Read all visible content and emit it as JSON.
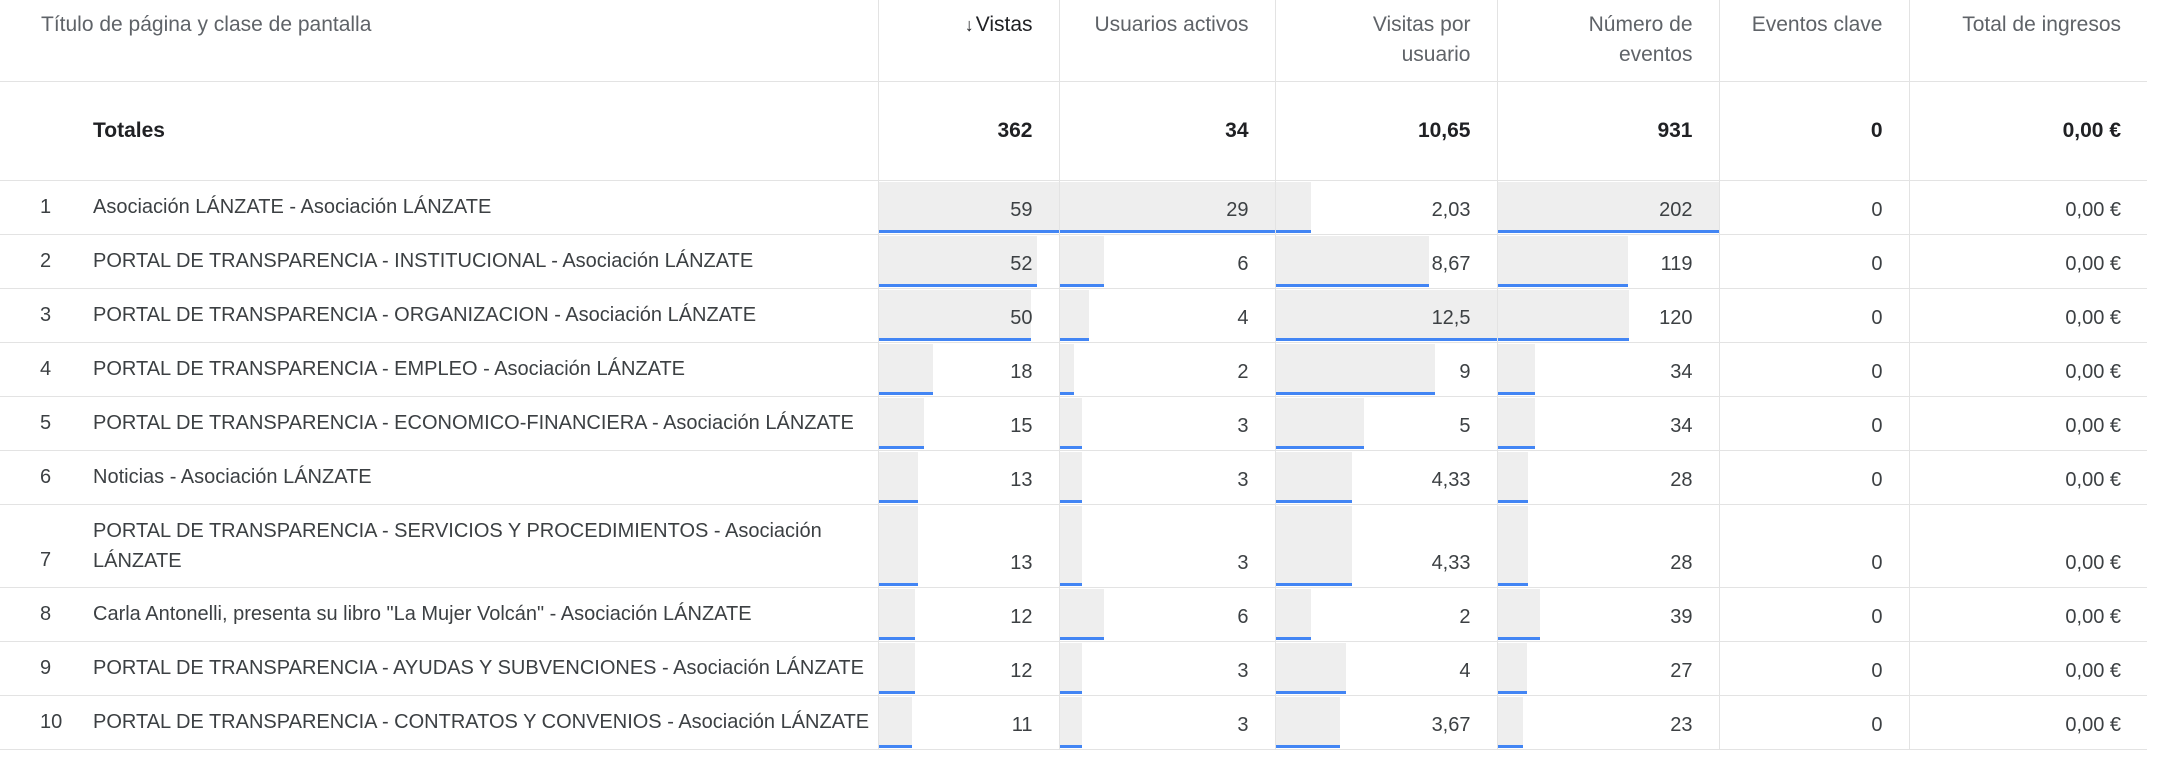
{
  "columns": {
    "title": "Título de página y clase de pantalla",
    "views": "Vistas",
    "active_users": "Usuarios activos",
    "views_per_user_l1": "Visitas por",
    "views_per_user_l2": "usuario",
    "event_count_l1": "Número de",
    "event_count_l2": "eventos",
    "key_events": "Eventos clave",
    "total_revenue": "Total de ingresos",
    "sort_arrow": "↓"
  },
  "totals": {
    "label": "Totales",
    "views": "362",
    "active_users": "34",
    "views_per_user": "10,65",
    "event_count": "931",
    "key_events": "0",
    "total_revenue": "0,00 €"
  },
  "rows": [
    {
      "index": "1",
      "title": "Asociación LÁNZATE - Asociación LÁNZATE",
      "views": "59",
      "active_users": "29",
      "views_per_user": "2,03",
      "event_count": "202",
      "key_events": "0",
      "total_revenue": "0,00 €",
      "views_fill": 1.0,
      "users_fill": 1.0,
      "vpu_fill": 0.162,
      "events_fill": 1.0
    },
    {
      "index": "2",
      "title": "PORTAL DE TRANSPARENCIA - INSTITUCIONAL - Asociación LÁNZATE",
      "views": "52",
      "active_users": "6",
      "views_per_user": "8,67",
      "event_count": "119",
      "key_events": "0",
      "total_revenue": "0,00 €",
      "views_fill": 0.881,
      "users_fill": 0.207,
      "vpu_fill": 0.694,
      "events_fill": 0.589
    },
    {
      "index": "3",
      "title": "PORTAL DE TRANSPARENCIA - ORGANIZACION - Asociación LÁNZATE",
      "views": "50",
      "active_users": "4",
      "views_per_user": "12,5",
      "event_count": "120",
      "key_events": "0",
      "total_revenue": "0,00 €",
      "views_fill": 0.847,
      "users_fill": 0.138,
      "vpu_fill": 1.0,
      "events_fill": 0.594
    },
    {
      "index": "4",
      "title": "PORTAL DE TRANSPARENCIA - EMPLEO - Asociación LÁNZATE",
      "views": "18",
      "active_users": "2",
      "views_per_user": "9",
      "event_count": "34",
      "key_events": "0",
      "total_revenue": "0,00 €",
      "views_fill": 0.305,
      "users_fill": 0.069,
      "vpu_fill": 0.72,
      "events_fill": 0.168
    },
    {
      "index": "5",
      "title": "PORTAL DE TRANSPARENCIA - ECONOMICO-FINANCIERA - Asociación LÁNZATE",
      "views": "15",
      "active_users": "3",
      "views_per_user": "5",
      "event_count": "34",
      "key_events": "0",
      "total_revenue": "0,00 €",
      "views_fill": 0.254,
      "users_fill": 0.103,
      "vpu_fill": 0.4,
      "events_fill": 0.168
    },
    {
      "index": "6",
      "title": "Noticias - Asociación LÁNZATE",
      "views": "13",
      "active_users": "3",
      "views_per_user": "4,33",
      "event_count": "28",
      "key_events": "0",
      "total_revenue": "0,00 €",
      "views_fill": 0.22,
      "users_fill": 0.103,
      "vpu_fill": 0.346,
      "events_fill": 0.139
    },
    {
      "index": "7",
      "title": "PORTAL DE TRANSPARENCIA - SERVICIOS Y PROCEDIMIENTOS - Asociación LÁNZATE",
      "views": "13",
      "active_users": "3",
      "views_per_user": "4,33",
      "event_count": "28",
      "key_events": "0",
      "total_revenue": "0,00 €",
      "views_fill": 0.22,
      "users_fill": 0.103,
      "vpu_fill": 0.346,
      "events_fill": 0.139
    },
    {
      "index": "8",
      "title": "Carla Antonelli, presenta su libro \"La Mujer Volcán\" - Asociación LÁNZATE",
      "views": "12",
      "active_users": "6",
      "views_per_user": "2",
      "event_count": "39",
      "key_events": "0",
      "total_revenue": "0,00 €",
      "views_fill": 0.203,
      "users_fill": 0.207,
      "vpu_fill": 0.16,
      "events_fill": 0.193
    },
    {
      "index": "9",
      "title": "PORTAL DE TRANSPARENCIA - AYUDAS Y SUBVENCIONES - Asociación LÁNZATE",
      "views": "12",
      "active_users": "3",
      "views_per_user": "4",
      "event_count": "27",
      "key_events": "0",
      "total_revenue": "0,00 €",
      "views_fill": 0.203,
      "users_fill": 0.103,
      "vpu_fill": 0.32,
      "events_fill": 0.134
    },
    {
      "index": "10",
      "title": "PORTAL DE TRANSPARENCIA - CONTRATOS Y CONVENIOS - Asociación LÁNZATE",
      "views": "11",
      "active_users": "3",
      "views_per_user": "3,67",
      "event_count": "23",
      "key_events": "0",
      "total_revenue": "0,00 €",
      "views_fill": 0.186,
      "users_fill": 0.103,
      "vpu_fill": 0.294,
      "events_fill": 0.114
    }
  ],
  "colors": {
    "bar_fill": "#eeeeee",
    "bar_accent": "#4285f4",
    "grid_line": "#e3e3e3"
  }
}
